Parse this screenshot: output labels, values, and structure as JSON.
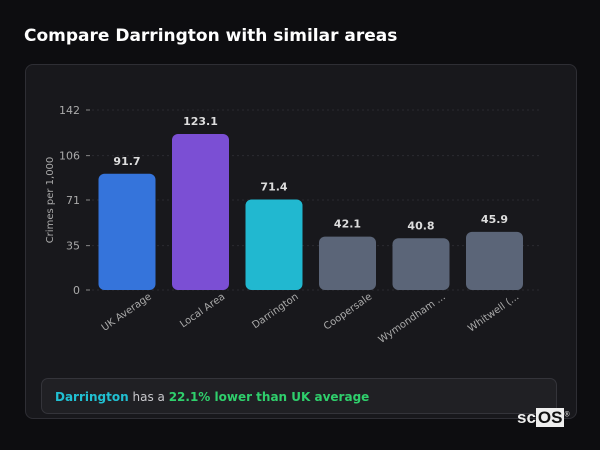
{
  "title": "Compare Darrington with similar areas",
  "chart_data": {
    "type": "bar",
    "categories": [
      "UK Average",
      "Local Area",
      "Darrington",
      "Coopersale",
      "Wymondham ...",
      "Whitwell (..."
    ],
    "values": [
      91.7,
      123.1,
      71.4,
      42.1,
      40.8,
      45.9
    ],
    "value_labels": [
      "91.7",
      "123.1",
      "71.4",
      "42.1",
      "40.8",
      "45.9"
    ],
    "colors": [
      "#3574db",
      "#7b4fd4",
      "#21b8d0",
      "#5b6578",
      "#5b6578",
      "#5b6578"
    ],
    "ylabel": "Crimes per 1,000",
    "yticks": [
      0,
      35,
      71,
      106,
      142
    ],
    "ylim": [
      0,
      142
    ],
    "grid": true
  },
  "summary": {
    "area": "Darrington",
    "middle": " has a ",
    "comparison": "22.1% lower than UK average"
  },
  "logo": {
    "text_sc": "sc",
    "text_os": "OS"
  }
}
